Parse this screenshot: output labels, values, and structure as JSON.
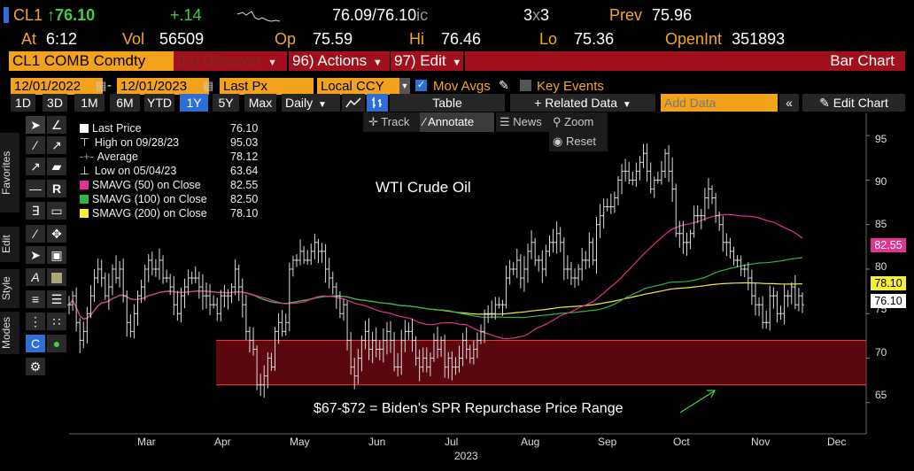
{
  "header": {
    "ticker": "CL1",
    "last": "76.10",
    "change": "+.14",
    "bid_ask_bid": "76.09",
    "bid_ask_ask": "76.10",
    "ic": "ic",
    "size": "3",
    "size2": "3",
    "prev_label": "Prev",
    "prev_value": "75.96",
    "at_label": "At",
    "at_value": "6:12",
    "vol_label": "Vol",
    "vol_value": "56509",
    "op_label": "Op",
    "op_value": "75.59",
    "hi_label": "Hi",
    "hi_value": "76.46",
    "lo_label": "Lo",
    "lo_value": "75.36",
    "openint_label": "OpenInt",
    "openint_value": "351893"
  },
  "toolbar": {
    "security": "CL1 COMB Comdty",
    "discover": "94) Discover",
    "actions": "96) Actions",
    "edit": "97) Edit",
    "chart_type": "Bar Chart"
  },
  "controls": {
    "start_date": "12/01/2022",
    "end_date": "12/01/2023",
    "field": "Last Px",
    "currency": "Local CCY",
    "mov_avgs": "Mov Avgs",
    "key_events": "Key Events"
  },
  "periods": [
    "1D",
    "3D",
    "1M",
    "6M",
    "YTD",
    "1Y",
    "5Y",
    "Max"
  ],
  "selected_period": "1Y",
  "frequency": "Daily",
  "table_label": "Table",
  "related_data": "+ Related Data",
  "add_data_placeholder": "Add Data",
  "edit_chart": "Edit Chart",
  "subtools": {
    "track": "Track",
    "annotate": "Annotate",
    "news": "News",
    "zoom": "Zoom",
    "reset": "Reset"
  },
  "side_tabs": [
    "Favorites",
    "Edit",
    "Style",
    "Modes"
  ],
  "legend": [
    {
      "label": "Last Price",
      "value": "76.10",
      "color": "#ffffff"
    },
    {
      "label": "High on 09/28/23",
      "value": "95.03",
      "color": ""
    },
    {
      "label": "Average",
      "value": "78.12",
      "color": ""
    },
    {
      "label": "Low on 05/04/23",
      "value": "63.64",
      "color": ""
    },
    {
      "label": "SMAVG (50)  on Close",
      "value": "82.55",
      "color": "#e0338f"
    },
    {
      "label": "SMAVG (100)  on Close",
      "value": "82.50",
      "color": "#2fb34a"
    },
    {
      "label": "SMAVG (200)  on Close",
      "value": "78.10",
      "color": "#f5ef3a"
    }
  ],
  "annotations": {
    "title": "WTI Crude Oil",
    "range_note": "$67-$72 = Biden's SPR Repurchase Price Range"
  },
  "price_tags": {
    "sma50": "82.55",
    "sma200": "78.10",
    "last": "76.10"
  },
  "colors": {
    "amber": "#f5a623",
    "sma50": "#e0338f",
    "sma100": "#2fb34a",
    "sma200": "#f5ef3a",
    "band": "#8a0d14"
  },
  "chart_data": {
    "type": "bar",
    "y_ticks": [
      65,
      70,
      75,
      80,
      85,
      90,
      95
    ],
    "ylim": [
      61.5,
      97.5
    ],
    "x_ticks": [
      "Mar",
      "Apr",
      "May",
      "Jun",
      "Jul",
      "Aug",
      "Sep",
      "Oct",
      "Nov",
      "Dec"
    ],
    "xlabel": "2023",
    "band": [
      67,
      72
    ],
    "close_series": [
      {
        "m": "2022-12",
        "v": [
          76,
          77,
          74,
          72,
          73,
          75,
          77,
          79,
          80,
          79,
          77,
          78,
          80,
          79,
          80
        ]
      },
      {
        "m": "2023-01",
        "v": [
          77,
          74,
          73,
          75,
          77,
          78,
          80,
          81,
          80,
          80,
          81,
          79,
          79,
          78
        ]
      },
      {
        "m": "2023-02",
        "v": [
          76,
          75,
          77,
          78,
          79,
          79,
          79,
          78,
          77,
          77,
          76,
          76,
          75,
          77,
          77
        ]
      },
      {
        "m": "2023-03",
        "v": [
          77,
          78,
          80,
          78,
          76,
          73,
          72,
          71,
          67,
          67,
          68,
          70,
          69,
          73,
          74,
          73,
          74
        ]
      },
      {
        "m": "2023-04",
        "v": [
          80,
          81,
          81,
          82,
          81,
          81,
          82,
          83,
          82,
          82,
          80,
          79,
          78,
          77,
          75,
          76
        ]
      },
      {
        "m": "2023-05",
        "v": [
          72,
          69,
          68,
          70,
          72,
          73,
          71,
          72,
          71,
          71,
          72,
          73,
          72,
          69,
          69,
          72,
          73
        ]
      },
      {
        "m": "2023-06",
        "v": [
          73,
          72,
          70,
          69,
          70,
          69,
          70,
          72,
          71,
          72,
          69,
          70,
          69,
          69,
          70,
          72,
          71
        ]
      },
      {
        "m": "2023-07",
        "v": [
          70,
          71,
          72,
          73,
          75,
          75,
          75,
          76,
          76,
          76,
          79,
          80,
          80,
          81,
          79,
          80,
          82,
          83,
          81
        ]
      },
      {
        "m": "2023-08",
        "v": [
          81,
          80,
          82,
          83,
          83,
          84,
          83,
          80,
          80,
          79,
          79,
          80,
          81,
          81,
          83,
          81,
          85,
          86
        ]
      },
      {
        "m": "2023-09",
        "v": [
          87,
          87,
          87,
          88,
          90,
          91,
          91,
          90,
          90,
          91,
          92,
          93,
          91,
          89,
          90,
          90,
          91,
          93,
          91
        ]
      },
      {
        "m": "2023-10",
        "v": [
          89,
          84,
          84,
          83,
          83,
          84,
          86,
          86,
          86,
          88,
          89,
          88,
          86,
          85,
          83,
          83,
          82,
          81,
          81
        ]
      },
      {
        "m": "2023-11",
        "v": [
          80,
          80,
          79,
          77,
          76,
          76,
          74,
          74,
          77,
          77,
          75,
          75,
          77,
          77,
          78,
          76,
          77,
          76
        ]
      }
    ]
  }
}
